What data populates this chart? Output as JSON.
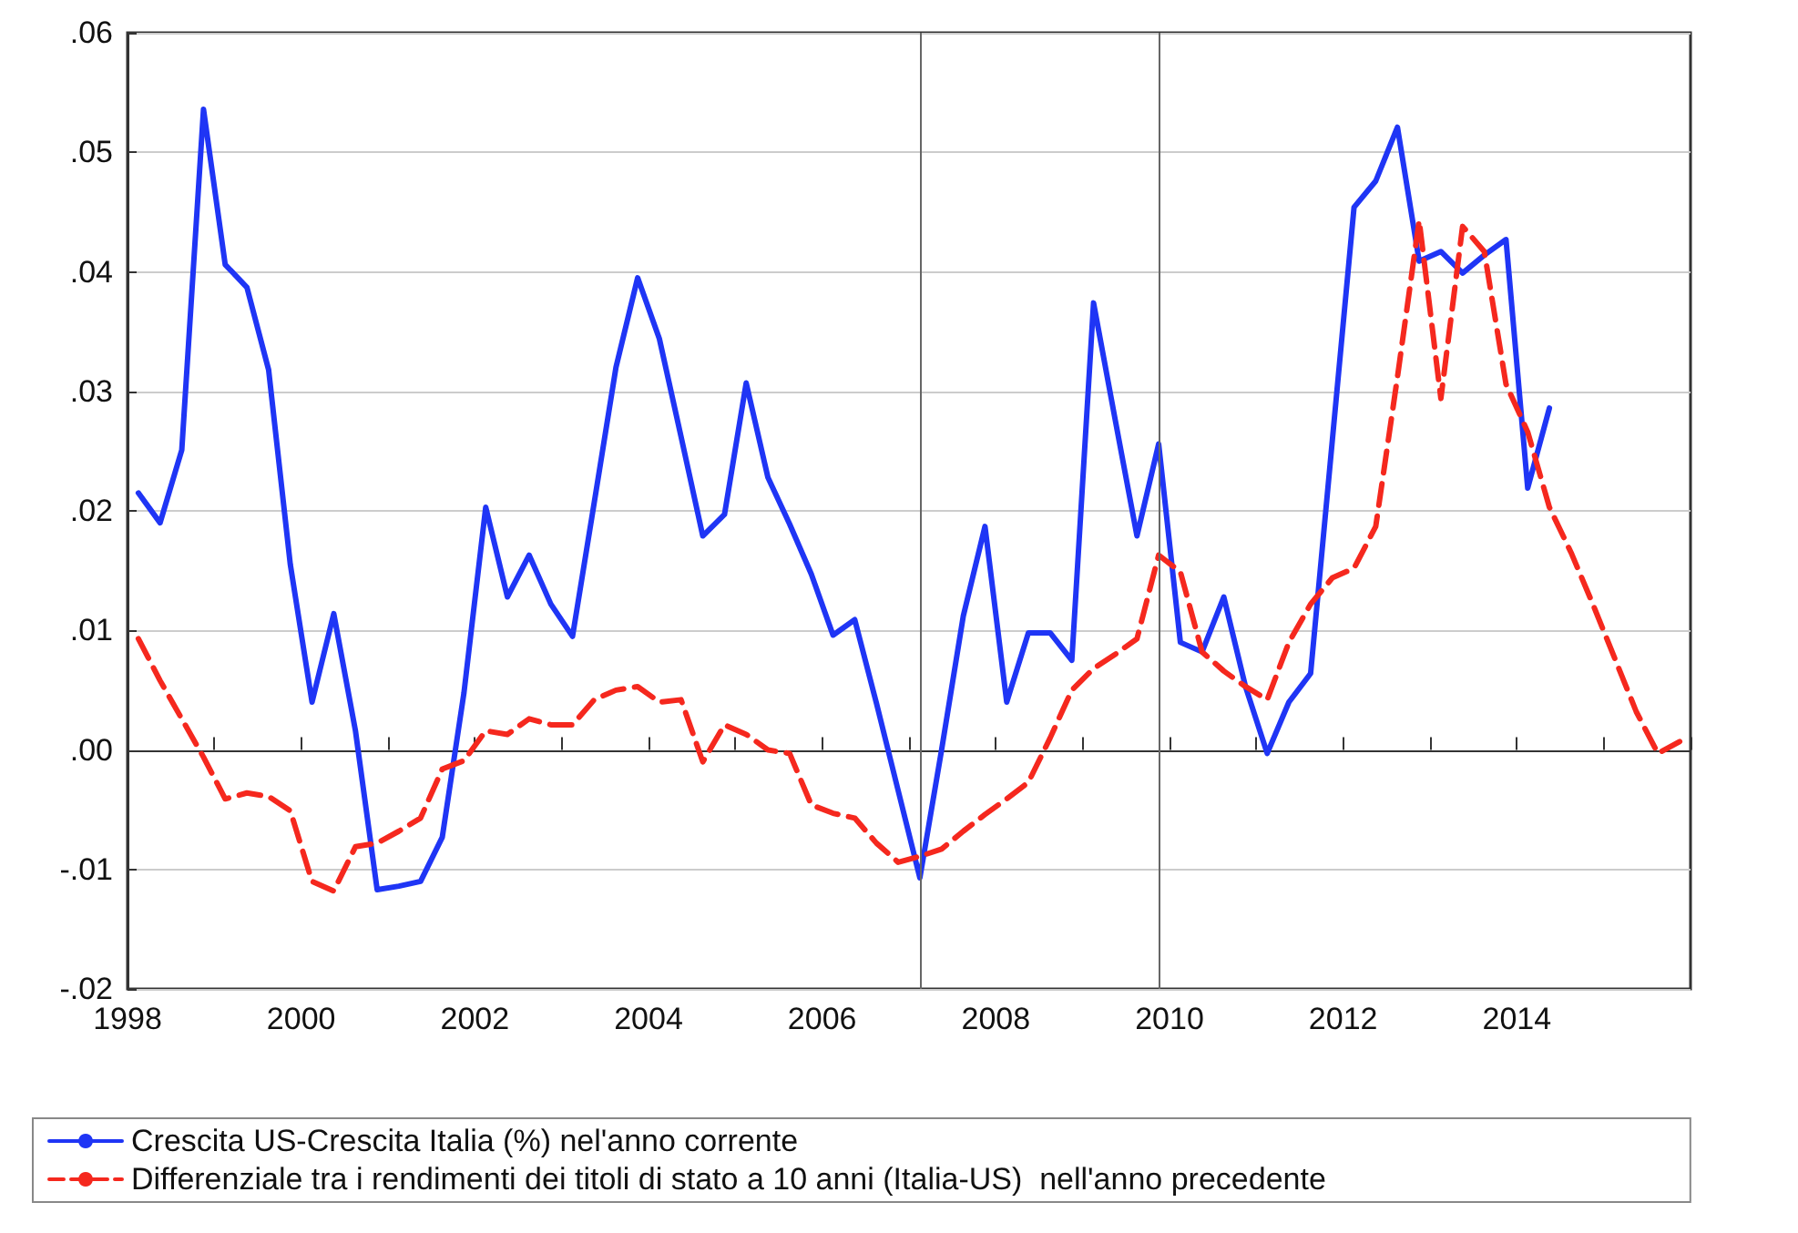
{
  "chart_data": {
    "type": "line",
    "x": [
      1998.125,
      1998.375,
      1998.625,
      1998.875,
      1999.125,
      1999.375,
      1999.625,
      1999.875,
      2000.125,
      2000.375,
      2000.625,
      2000.875,
      2001.125,
      2001.375,
      2001.625,
      2001.875,
      2002.125,
      2002.375,
      2002.625,
      2002.875,
      2003.125,
      2003.375,
      2003.625,
      2003.875,
      2004.125,
      2004.375,
      2004.625,
      2004.875,
      2005.125,
      2005.375,
      2005.625,
      2005.875,
      2006.125,
      2006.375,
      2006.625,
      2006.875,
      2007.125,
      2007.375,
      2007.625,
      2007.875,
      2008.125,
      2008.375,
      2008.625,
      2008.875,
      2009.125,
      2009.375,
      2009.625,
      2009.875,
      2010.125,
      2010.375,
      2010.625,
      2010.875,
      2011.125,
      2011.375,
      2011.625,
      2011.875,
      2012.125,
      2012.375,
      2012.625,
      2012.875,
      2013.125,
      2013.375,
      2013.625,
      2013.875,
      2014.125,
      2014.375,
      2014.625,
      2014.875,
      2015.125,
      2015.375,
      2015.625,
      2015.875
    ],
    "series": [
      {
        "name": "Crescita US-Crescita Italia (%) nel'anno corrente",
        "color": "#1f35f5",
        "line_style": "solid",
        "values": [
          0.0215,
          0.019,
          0.0251,
          0.0536,
          0.0406,
          0.0387,
          0.0318,
          0.0155,
          0.004,
          0.0114,
          0.0016,
          -0.0117,
          -0.0114,
          -0.011,
          -0.0073,
          0.0048,
          0.0203,
          0.0128,
          0.0163,
          0.0122,
          0.0095,
          0.0207,
          0.032,
          0.0395,
          0.0344,
          0.0262,
          0.0179,
          0.0197,
          0.0307,
          0.0228,
          0.0189,
          0.0147,
          0.0096,
          0.0109,
          0.0039,
          -0.0034,
          -0.0107,
          0,
          0.0112,
          0.0187,
          0.004,
          0.0098,
          0.0098,
          0.0075,
          0.0374,
          0.0276,
          0.0179,
          0.0256,
          0.009,
          0.0082,
          0.0128,
          0.0053,
          -0.0003,
          0.004,
          0.0064,
          0.0259,
          0.0454,
          0.0476,
          0.0521,
          0.0409,
          0.0417,
          0.0399,
          0.0414,
          0.0427,
          0.0219,
          0.0286,
          null,
          null,
          null,
          null,
          null,
          null
        ]
      },
      {
        "name": "Differenziale tra i rendimenti dei titoli di stato a 10 anni (Italia-US)  nell'anno precedente",
        "color": "#f5281e",
        "line_style": "dashed",
        "values": [
          0.0093,
          0.0058,
          0.0026,
          -0.0006,
          -0.0041,
          -0.0036,
          -0.0039,
          -0.0051,
          -0.011,
          -0.0118,
          -0.0081,
          -0.0078,
          -0.0068,
          -0.0057,
          -0.0016,
          -0.0009,
          0.0016,
          0.0013,
          0.0026,
          0.0021,
          0.0021,
          0.0042,
          0.005,
          0.0053,
          0.004,
          0.0042,
          -0.001,
          0.0021,
          0.0013,
          0,
          -0.0003,
          -0.0046,
          -0.0053,
          -0.0057,
          -0.0078,
          -0.0094,
          -0.0089,
          -0.0083,
          -0.0068,
          -0.0054,
          -0.0041,
          -0.0027,
          0.001,
          0.005,
          0.0068,
          0.008,
          0.0093,
          0.0163,
          0.0149,
          0.0082,
          0.0066,
          0.0053,
          0.0042,
          0.009,
          0.0122,
          0.0144,
          0.0152,
          0.0187,
          0.0312,
          0.0443,
          0.0294,
          0.0438,
          0.0417,
          0.0306,
          0.0266,
          0.0203,
          0.0165,
          0.0122,
          0.0077,
          0.0032,
          -0.0003,
          0.0007
        ]
      }
    ],
    "xlim": [
      1998,
      2016
    ],
    "xticks": [
      1998,
      {
        "value": 1999,
        "label": null
      },
      2000,
      {
        "value": 2001,
        "label": null
      },
      2002,
      {
        "value": 2003,
        "label": null
      },
      2004,
      {
        "value": 2005,
        "label": null
      },
      2006,
      {
        "value": 2007,
        "label": null
      },
      2008,
      {
        "value": 2009,
        "label": null
      },
      2010,
      {
        "value": 2011,
        "label": null
      },
      2012,
      {
        "value": 2013,
        "label": null
      },
      2014,
      {
        "value": 2015,
        "label": null
      },
      {
        "value": 2016,
        "label": null
      }
    ],
    "ylim": [
      -0.02,
      0.06
    ],
    "yticks": [
      {
        "value": -0.02,
        "label": "-.02"
      },
      {
        "value": -0.01,
        "label": "-.01"
      },
      {
        "value": 0,
        "label": ".00"
      },
      {
        "value": 0.01,
        "label": ".01"
      },
      {
        "value": 0.02,
        "label": ".02"
      },
      {
        "value": 0.03,
        "label": ".03"
      },
      {
        "value": 0.04,
        "label": ".04"
      },
      {
        "value": 0.05,
        "label": ".05"
      },
      {
        "value": 0.06,
        "label": ".06"
      }
    ],
    "ref_lines": [
      {
        "axis": "x",
        "value": 2007.125,
        "color": "#666666"
      },
      {
        "axis": "x",
        "value": 2009.875,
        "color": "#666666"
      }
    ],
    "grid": "y",
    "legend": "bottom",
    "marker": "none"
  }
}
